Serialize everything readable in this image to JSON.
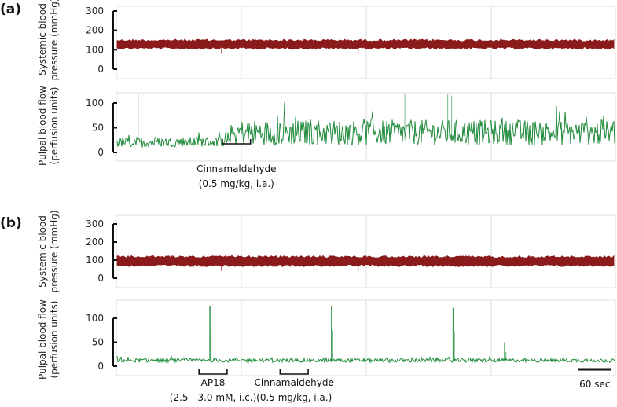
{
  "chart_data": [
    {
      "panel": "(a)",
      "type": "line",
      "ylabel_lines": [
        "Systemic blood",
        "pressure (mmHg)"
      ],
      "yticks": [
        0,
        100,
        200,
        300
      ],
      "ylim": [
        0,
        300
      ],
      "series": [
        {
          "values_band": [
            108,
            148
          ],
          "color": "#8b1a1a"
        }
      ],
      "grid": true
    },
    {
      "panel": "(a)",
      "type": "line",
      "ylabel_lines": [
        "Pulpal blood flow",
        "(perfusion units)"
      ],
      "yticks": [
        0,
        50,
        100
      ],
      "ylim": [
        0,
        120
      ],
      "x_time_sec": [
        0,
        140,
        155,
        640
      ],
      "baseline_pu": [
        20,
        22,
        40,
        40
      ],
      "series": [
        {
          "color": "#1e8a3a"
        }
      ],
      "annotations": [
        {
          "text_lines": [
            "Cinnamaldehyde",
            "(0.5 mg/kg, i.a.)"
          ],
          "time_sec": [
            136,
            172
          ]
        }
      ],
      "grid": true
    },
    {
      "panel": "(b)",
      "type": "line",
      "ylabel_lines": [
        "Systemic blood",
        "pressure (mmHg)"
      ],
      "yticks": [
        0,
        100,
        200,
        300
      ],
      "ylim": [
        0,
        300
      ],
      "series": [
        {
          "values_band": [
            70,
            118
          ],
          "color": "#8b1a1a"
        }
      ],
      "grid": true
    },
    {
      "panel": "(b)",
      "type": "line",
      "ylabel_lines": [
        "Pulpal blood flow",
        "(perfusion units)"
      ],
      "yticks": [
        0,
        50,
        100
      ],
      "ylim": [
        0,
        140
      ],
      "baseline_pu": 12,
      "spikes": [
        {
          "time_sec": 120,
          "value": 125
        },
        {
          "time_sec": 276,
          "value": 125
        },
        {
          "time_sec": 432,
          "value": 122
        },
        {
          "time_sec": 498,
          "value": 50
        }
      ],
      "series": [
        {
          "color": "#1e8a3a"
        }
      ],
      "annotations": [
        {
          "text_lines": [
            "AP18",
            "(2.5 - 3.0 mM, i.c.)"
          ],
          "time_sec": [
            106,
            142
          ]
        },
        {
          "text_lines": [
            "Cinnamaldehyde",
            "(0.5 mg/kg, i.a.)"
          ],
          "time_sec": [
            210,
            246
          ]
        }
      ],
      "scale_bar": {
        "label": "60 sec",
        "duration_sec": 60
      },
      "grid": true
    }
  ],
  "panel_labels": [
    "(a)",
    "(b)"
  ]
}
